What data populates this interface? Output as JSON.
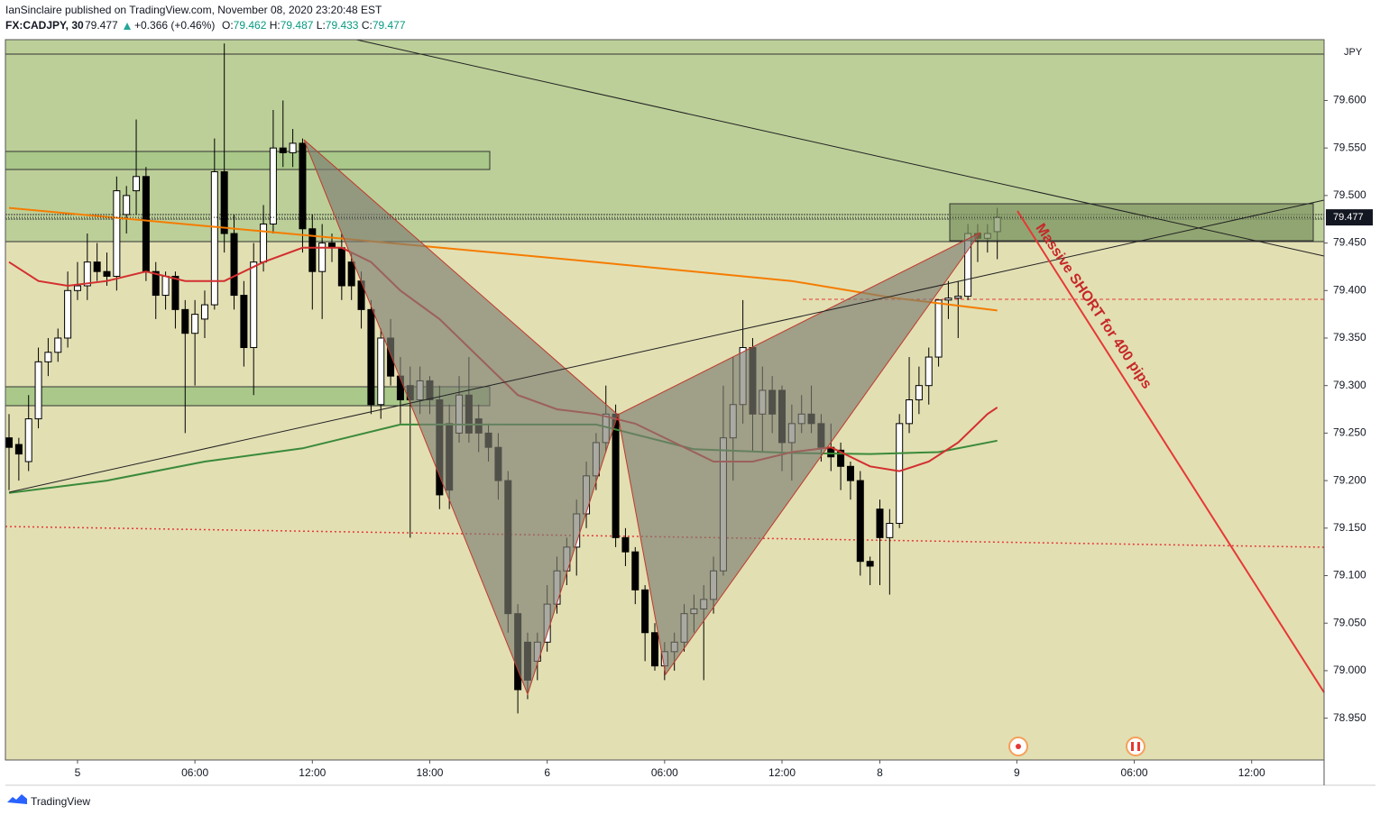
{
  "header": {
    "publisher": "IanSinclaire published on TradingView.com, November 08, 2020 23:20:48 EST",
    "symbol": "FX:CADJPY, 30",
    "price": "79.477",
    "change": "+0.366 (+0.46%)",
    "o_label": "O:",
    "o": "79.462",
    "h_label": "H:",
    "h": "79.487",
    "l_label": "L:",
    "l": "79.433",
    "c_label": "C:",
    "c": "79.477"
  },
  "chart_data": {
    "type": "candlestick",
    "up_color": "#ffffff",
    "down_color": "#000000",
    "grid": false,
    "ylim": [
      78.906,
      79.664
    ],
    "yticks": [
      {
        "value": 78.95,
        "label": "78.950"
      },
      {
        "value": 79.0,
        "label": "79.000"
      },
      {
        "value": 79.05,
        "label": "79.050"
      },
      {
        "value": 79.1,
        "label": "79.100"
      },
      {
        "value": 79.15,
        "label": "79.150"
      },
      {
        "value": 79.2,
        "label": "79.200"
      },
      {
        "value": 79.25,
        "label": "79.250"
      },
      {
        "value": 79.3,
        "label": "79.300"
      },
      {
        "value": 79.35,
        "label": "79.350"
      },
      {
        "value": 79.4,
        "label": "79.400"
      },
      {
        "value": 79.45,
        "label": "79.450"
      },
      {
        "value": 79.5,
        "label": "79.500"
      },
      {
        "value": 79.55,
        "label": "79.550"
      },
      {
        "value": 79.6,
        "label": "79.600"
      }
    ],
    "y_unit": "JPY",
    "xlim": [
      -0.37,
      134.4
    ],
    "xticks": [
      {
        "value": 7,
        "label": "5"
      },
      {
        "value": 19,
        "label": "06:00"
      },
      {
        "value": 31,
        "label": "12:00"
      },
      {
        "value": 43,
        "label": "18:00"
      },
      {
        "value": 55,
        "label": "6"
      },
      {
        "value": 67,
        "label": "06:00"
      },
      {
        "value": 79,
        "label": "12:00"
      },
      {
        "value": 89,
        "label": "8"
      },
      {
        "value": 103,
        "label": "9"
      },
      {
        "value": 115,
        "label": "06:00"
      },
      {
        "value": 127,
        "label": "12:00"
      }
    ],
    "last_price": {
      "value": 79.477,
      "label": "79.477"
    },
    "annotation": "Massive SHORT for 400 pips",
    "ohlc": [
      [
        79.245,
        79.27,
        79.19,
        79.235
      ],
      [
        79.238,
        79.245,
        79.2,
        79.228
      ],
      [
        79.22,
        79.29,
        79.21,
        79.265
      ],
      [
        79.265,
        79.34,
        79.255,
        79.325
      ],
      [
        79.325,
        79.35,
        79.31,
        79.335
      ],
      [
        79.335,
        79.36,
        79.325,
        79.35
      ],
      [
        79.35,
        79.42,
        79.34,
        79.4
      ],
      [
        79.4,
        79.43,
        79.39,
        79.405
      ],
      [
        79.405,
        79.46,
        79.39,
        79.43
      ],
      [
        79.43,
        79.45,
        79.41,
        79.42
      ],
      [
        79.42,
        79.44,
        79.405,
        79.415
      ],
      [
        79.415,
        79.52,
        79.4,
        79.505
      ],
      [
        79.48,
        79.51,
        79.46,
        79.5
      ],
      [
        79.505,
        79.58,
        79.48,
        79.52
      ],
      [
        79.52,
        79.53,
        79.41,
        79.42
      ],
      [
        79.42,
        79.43,
        79.37,
        79.395
      ],
      [
        79.395,
        79.42,
        79.38,
        79.415
      ],
      [
        79.415,
        79.42,
        79.36,
        79.38
      ],
      [
        79.38,
        79.39,
        79.25,
        79.355
      ],
      [
        79.355,
        79.39,
        79.3,
        79.375
      ],
      [
        79.37,
        79.4,
        79.35,
        79.385
      ],
      [
        79.385,
        79.56,
        79.38,
        79.525
      ],
      [
        79.525,
        79.66,
        79.44,
        79.46
      ],
      [
        79.46,
        79.48,
        79.38,
        79.395
      ],
      [
        79.395,
        79.41,
        79.32,
        79.34
      ],
      [
        79.34,
        79.45,
        79.29,
        79.43
      ],
      [
        79.43,
        79.49,
        79.42,
        79.47
      ],
      [
        79.47,
        79.59,
        79.46,
        79.55
      ],
      [
        79.55,
        79.6,
        79.53,
        79.545
      ],
      [
        79.545,
        79.57,
        79.53,
        79.555
      ],
      [
        79.555,
        79.56,
        79.44,
        79.465
      ],
      [
        79.465,
        79.48,
        79.38,
        79.42
      ],
      [
        79.42,
        79.47,
        79.37,
        79.45
      ],
      [
        79.45,
        79.46,
        79.43,
        79.445
      ],
      [
        79.445,
        79.46,
        79.39,
        79.405
      ],
      [
        79.43,
        79.44,
        79.39,
        79.405
      ],
      [
        79.41,
        79.42,
        79.36,
        79.38
      ],
      [
        79.38,
        79.39,
        79.27,
        79.28
      ],
      [
        79.28,
        79.36,
        79.265,
        79.35
      ],
      [
        79.35,
        79.37,
        79.3,
        79.31
      ],
      [
        79.31,
        79.33,
        79.26,
        79.285
      ],
      [
        79.3,
        79.32,
        79.14,
        79.285
      ],
      [
        79.285,
        79.32,
        79.27,
        79.305
      ],
      [
        79.305,
        79.31,
        79.27,
        79.285
      ],
      [
        79.285,
        79.3,
        79.17,
        79.185
      ],
      [
        79.26,
        79.28,
        79.17,
        79.19
      ],
      [
        79.25,
        79.31,
        79.24,
        79.29
      ],
      [
        79.29,
        79.33,
        79.24,
        79.25
      ],
      [
        79.265,
        79.28,
        79.23,
        79.25
      ],
      [
        79.25,
        79.26,
        79.22,
        79.235
      ],
      [
        79.235,
        79.25,
        79.18,
        79.2
      ],
      [
        79.2,
        79.21,
        79.04,
        79.06
      ],
      [
        79.06,
        79.07,
        78.955,
        78.98
      ],
      [
        79.03,
        79.04,
        78.97,
        78.99
      ],
      [
        79.01,
        79.04,
        78.99,
        79.03
      ],
      [
        79.03,
        79.09,
        79.02,
        79.07
      ],
      [
        79.07,
        79.12,
        79.06,
        79.105
      ],
      [
        79.105,
        79.14,
        79.09,
        79.13
      ],
      [
        79.13,
        79.18,
        79.1,
        79.165
      ],
      [
        79.165,
        79.22,
        79.15,
        79.205
      ],
      [
        79.205,
        79.25,
        79.19,
        79.24
      ],
      [
        79.24,
        79.3,
        79.23,
        79.27
      ],
      [
        79.27,
        79.28,
        79.13,
        79.14
      ],
      [
        79.14,
        79.15,
        79.11,
        79.125
      ],
      [
        79.125,
        79.13,
        79.07,
        79.085
      ],
      [
        79.085,
        79.09,
        79.01,
        79.04
      ],
      [
        79.04,
        79.05,
        79.0,
        79.005
      ],
      [
        79.005,
        79.03,
        78.99,
        79.02
      ],
      [
        79.02,
        79.04,
        79.0,
        79.03
      ],
      [
        79.03,
        79.07,
        79.02,
        79.06
      ],
      [
        79.06,
        79.08,
        79.04,
        79.065
      ],
      [
        79.065,
        79.09,
        78.99,
        79.075
      ],
      [
        79.075,
        79.12,
        79.06,
        79.105
      ],
      [
        79.105,
        79.3,
        79.1,
        79.245
      ],
      [
        79.245,
        79.33,
        79.2,
        79.28
      ],
      [
        79.28,
        79.39,
        79.26,
        79.34
      ],
      [
        79.34,
        79.35,
        79.23,
        79.27
      ],
      [
        79.27,
        79.32,
        79.23,
        79.295
      ],
      [
        79.295,
        79.31,
        79.25,
        79.27
      ],
      [
        79.295,
        79.3,
        79.21,
        79.24
      ],
      [
        79.24,
        79.28,
        79.2,
        79.26
      ],
      [
        79.26,
        79.29,
        79.25,
        79.27
      ],
      [
        79.27,
        79.3,
        79.25,
        79.26
      ],
      [
        79.26,
        79.27,
        79.22,
        79.235
      ],
      [
        79.235,
        79.26,
        79.21,
        79.225
      ],
      [
        79.232,
        79.24,
        79.19,
        79.215
      ],
      [
        79.215,
        79.22,
        79.18,
        79.2
      ],
      [
        79.2,
        79.21,
        79.1,
        79.115
      ],
      [
        79.115,
        79.12,
        79.09,
        79.11
      ],
      [
        79.17,
        79.18,
        79.09,
        79.14
      ],
      [
        79.14,
        79.17,
        79.08,
        79.155
      ],
      [
        79.155,
        79.27,
        79.15,
        79.26
      ],
      [
        79.26,
        79.33,
        79.25,
        79.285
      ],
      [
        79.285,
        79.32,
        79.27,
        79.3
      ],
      [
        79.3,
        79.34,
        79.28,
        79.33
      ],
      [
        79.33,
        79.39,
        79.32,
        79.39
      ],
      [
        79.39,
        79.41,
        79.37,
        79.392
      ],
      [
        79.392,
        79.41,
        79.35,
        79.394
      ],
      [
        79.394,
        79.47,
        79.39,
        79.46
      ],
      [
        79.46,
        79.47,
        79.43,
        79.455
      ],
      [
        79.455,
        79.47,
        79.44,
        79.46
      ],
      [
        79.462,
        79.487,
        79.433,
        79.477
      ]
    ],
    "series": [
      {
        "color": "#f57c00",
        "x": [
          0,
          20,
          40,
          60,
          80,
          90,
          101
        ],
        "values": [
          79.487,
          79.468,
          79.449,
          79.43,
          79.41,
          79.393,
          79.379
        ]
      },
      {
        "color": "#3a8a3a",
        "x": [
          0,
          10,
          20,
          30,
          40,
          60,
          70,
          80,
          88,
          95,
          101
        ],
        "values": [
          79.187,
          79.2,
          79.22,
          79.234,
          79.259,
          79.259,
          79.233,
          79.229,
          79.228,
          79.23,
          79.242
        ]
      },
      {
        "color": "#d32f2f",
        "x": [
          0,
          3,
          6,
          10,
          14,
          18,
          22,
          26,
          30,
          34,
          37,
          40,
          44,
          48,
          52,
          56,
          60,
          64,
          68,
          72,
          76,
          80,
          84,
          88,
          91,
          94,
          97,
          100,
          101
        ],
        "values": [
          79.43,
          79.41,
          79.405,
          79.41,
          79.42,
          79.41,
          79.41,
          79.43,
          79.445,
          79.445,
          79.43,
          79.4,
          79.37,
          79.33,
          79.29,
          79.275,
          79.27,
          79.26,
          79.24,
          79.22,
          79.22,
          79.23,
          79.235,
          79.215,
          79.21,
          79.22,
          79.24,
          79.27,
          79.277
        ]
      }
    ]
  },
  "footer": {
    "brand": "TradingView"
  }
}
